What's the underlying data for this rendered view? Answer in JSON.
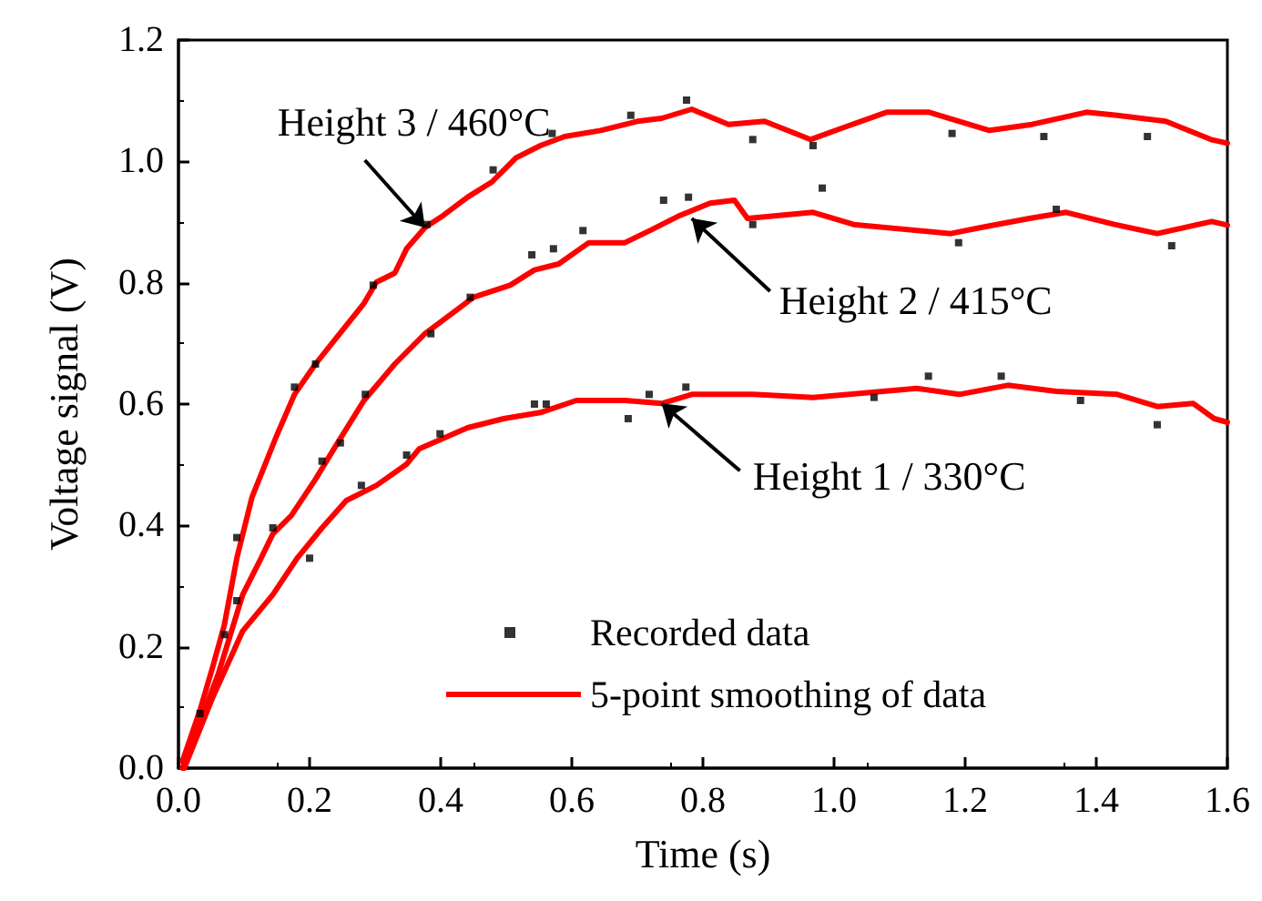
{
  "chart_data": {
    "type": "line",
    "xlabel": "Time (s)",
    "ylabel": "Voltage signal (V)",
    "xlim": [
      0,
      1.6
    ],
    "ylim": [
      0,
      1.2
    ],
    "xticks": [
      {
        "value": 0,
        "label": "0.0"
      },
      {
        "value": 0.2,
        "label": "0.2"
      },
      {
        "value": 0.4,
        "label": "0.4"
      },
      {
        "value": 0.6,
        "label": "0.6"
      },
      {
        "value": 0.8,
        "label": "0.8"
      },
      {
        "value": 1,
        "label": "1.0"
      },
      {
        "value": 1.2,
        "label": "1.2"
      },
      {
        "value": 1.4,
        "label": "1.4"
      },
      {
        "value": 1.6,
        "label": "1.6"
      }
    ],
    "yticks": [
      {
        "value": 0,
        "label": "0.0"
      },
      {
        "value": 0.2,
        "label": "0.2"
      },
      {
        "value": 0.4,
        "label": "0.4"
      },
      {
        "value": 0.6,
        "label": "0.6"
      },
      {
        "value": 0.8,
        "label": "0.8"
      },
      {
        "value": 1,
        "label": "1.0"
      },
      {
        "value": 1.2,
        "label": "1.2"
      }
    ],
    "grid": false,
    "legend": "bottom right",
    "line_style": "solid",
    "annotations": [
      {
        "text": "Height 3 / 460°C",
        "x": 0.376,
        "y": 0.891
      },
      {
        "text": "Height 2 / 415°C",
        "x": 0.783,
        "y": 0.906
      },
      {
        "text": "Height 1 / 330°C",
        "x": 0.737,
        "y": 0.601
      }
    ],
    "series": [
      {
        "name": "Recorded data",
        "type": "scatter",
        "marker": "square",
        "color": "#000000",
        "x": [
          0.033,
          0.07,
          0.089,
          0.089,
          0.144,
          0.2,
          0.219,
          0.279,
          0.177,
          0.209,
          0.297,
          0.379,
          0.48,
          0.57,
          0.69,
          0.775,
          0.617,
          0.539,
          0.572,
          0.445,
          0.385,
          0.285,
          0.247,
          0.74,
          0.778,
          0.543,
          0.561,
          0.686,
          0.718,
          0.774,
          0.399,
          0.348,
          0.876,
          0.968,
          1.18,
          1.32,
          1.478,
          0.982,
          0.876,
          1.19,
          1.339,
          1.515,
          1.144,
          1.255,
          1.493,
          1.061,
          1.376
        ],
        "values": [
          0.09,
          0.22,
          0.276,
          0.38,
          0.396,
          0.346,
          0.506,
          0.466,
          0.628,
          0.666,
          0.796,
          0.896,
          0.986,
          1.046,
          1.076,
          1.101,
          0.886,
          0.846,
          0.856,
          0.776,
          0.716,
          0.616,
          0.536,
          0.936,
          0.941,
          0.6,
          0.6,
          0.576,
          0.616,
          0.628,
          0.551,
          0.516,
          1.036,
          1.026,
          1.046,
          1.041,
          1.041,
          0.956,
          0.896,
          0.866,
          0.921,
          0.861,
          0.646,
          0.646,
          0.566,
          0.611,
          0.606
        ]
      },
      {
        "name": "5-point smoothing of data",
        "color": "#ff0000",
        "marker": "none",
        "x": [
          0.006,
          0.033,
          0.052,
          0.07,
          0.089,
          0.112,
          0.149,
          0.177,
          0.209,
          0.246,
          0.283,
          0.302,
          0.33,
          0.348,
          0.376,
          0.404,
          0.441,
          0.478,
          0.515,
          0.552,
          0.589,
          0.644,
          0.7,
          0.737,
          0.783,
          0.839,
          0.894,
          0.964,
          1.015,
          1.08,
          1.145,
          1.237,
          1.302,
          1.385,
          1.432,
          1.506,
          1.575,
          1.6
        ],
        "values": [
          0.011,
          0.096,
          0.166,
          0.236,
          0.346,
          0.446,
          0.546,
          0.616,
          0.666,
          0.716,
          0.766,
          0.801,
          0.816,
          0.856,
          0.891,
          0.911,
          0.941,
          0.966,
          1.006,
          1.026,
          1.041,
          1.051,
          1.066,
          1.071,
          1.086,
          1.061,
          1.066,
          1.036,
          1.056,
          1.081,
          1.081,
          1.051,
          1.061,
          1.081,
          1.076,
          1.066,
          1.036,
          1.03
        ]
      },
      {
        "color": "#ff0000",
        "marker": "none",
        "x": [
          0.006,
          0.033,
          0.061,
          0.098,
          0.126,
          0.144,
          0.172,
          0.209,
          0.237,
          0.283,
          0.33,
          0.376,
          0.45,
          0.506,
          0.543,
          0.58,
          0.626,
          0.681,
          0.719,
          0.765,
          0.811,
          0.848,
          0.868,
          0.968,
          1.03,
          1.178,
          1.224,
          1.298,
          1.354,
          1.428,
          1.493,
          1.576,
          1.6
        ],
        "values": [
          0.0,
          0.076,
          0.156,
          0.286,
          0.346,
          0.386,
          0.416,
          0.476,
          0.526,
          0.606,
          0.666,
          0.716,
          0.776,
          0.796,
          0.821,
          0.831,
          0.866,
          0.866,
          0.886,
          0.911,
          0.931,
          0.936,
          0.906,
          0.916,
          0.896,
          0.881,
          0.891,
          0.906,
          0.916,
          0.896,
          0.881,
          0.901,
          0.895
        ]
      },
      {
        "color": "#ff0000",
        "marker": "none",
        "x": [
          0.009,
          0.052,
          0.098,
          0.144,
          0.181,
          0.219,
          0.256,
          0.302,
          0.348,
          0.367,
          0.441,
          0.496,
          0.552,
          0.607,
          0.681,
          0.737,
          0.783,
          0.876,
          0.968,
          1.126,
          1.191,
          1.265,
          1.339,
          1.432,
          1.493,
          1.548,
          1.58,
          1.6
        ],
        "values": [
          0.0,
          0.116,
          0.226,
          0.286,
          0.346,
          0.396,
          0.441,
          0.466,
          0.501,
          0.526,
          0.561,
          0.576,
          0.586,
          0.606,
          0.606,
          0.601,
          0.616,
          0.616,
          0.611,
          0.626,
          0.616,
          0.631,
          0.621,
          0.616,
          0.596,
          0.601,
          0.576,
          0.57
        ]
      }
    ]
  }
}
